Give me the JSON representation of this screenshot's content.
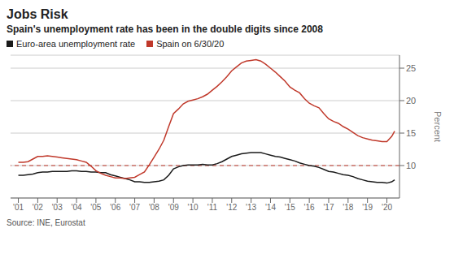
{
  "chart_data": {
    "type": "line",
    "title": "Jobs Risk",
    "subtitle": "Spain's unemployment rate has been in the double digits since 2008",
    "annotations": [
      "Source: INE, Eurostat"
    ],
    "y_label": "Percent",
    "x": [
      2001.0,
      2001.25,
      2001.5,
      2001.75,
      2002.0,
      2002.25,
      2002.5,
      2002.75,
      2003.0,
      2003.25,
      2003.5,
      2003.75,
      2004.0,
      2004.25,
      2004.5,
      2004.75,
      2005.0,
      2005.25,
      2005.5,
      2005.75,
      2006.0,
      2006.25,
      2006.5,
      2006.75,
      2007.0,
      2007.25,
      2007.5,
      2007.75,
      2008.0,
      2008.25,
      2008.5,
      2008.75,
      2009.0,
      2009.25,
      2009.5,
      2009.75,
      2010.0,
      2010.25,
      2010.5,
      2010.75,
      2011.0,
      2011.25,
      2011.5,
      2011.75,
      2012.0,
      2012.25,
      2012.5,
      2012.75,
      2013.0,
      2013.25,
      2013.5,
      2013.75,
      2014.0,
      2014.25,
      2014.5,
      2014.75,
      2015.0,
      2015.25,
      2015.5,
      2015.75,
      2016.0,
      2016.25,
      2016.5,
      2016.75,
      2017.0,
      2017.25,
      2017.5,
      2017.75,
      2018.0,
      2018.25,
      2018.5,
      2018.75,
      2019.0,
      2019.25,
      2019.5,
      2019.75,
      2020.0,
      2020.25,
      2020.4
    ],
    "series": [
      {
        "name": "Euro-area unemployment rate",
        "color": "#1a1a1a",
        "values": [
          8.5,
          8.5,
          8.6,
          8.7,
          8.9,
          9.0,
          9.0,
          9.1,
          9.1,
          9.1,
          9.1,
          9.2,
          9.2,
          9.1,
          9.1,
          9.0,
          9.0,
          8.9,
          8.9,
          8.6,
          8.4,
          8.2,
          8.0,
          7.8,
          7.5,
          7.5,
          7.4,
          7.4,
          7.5,
          7.6,
          7.8,
          8.5,
          9.5,
          9.8,
          10.0,
          10.1,
          10.1,
          10.1,
          10.2,
          10.1,
          10.1,
          10.3,
          10.6,
          11.0,
          11.4,
          11.6,
          11.8,
          11.9,
          12.0,
          12.0,
          12.0,
          11.8,
          11.6,
          11.4,
          11.3,
          11.1,
          10.9,
          10.7,
          10.4,
          10.2,
          10.0,
          9.9,
          9.7,
          9.4,
          9.1,
          9.0,
          8.8,
          8.6,
          8.5,
          8.3,
          8.0,
          7.8,
          7.6,
          7.5,
          7.4,
          7.4,
          7.3,
          7.5,
          7.8
        ]
      },
      {
        "name": "Spain on 6/30/20",
        "color": "#c0392b",
        "values": [
          10.5,
          10.5,
          10.6,
          11.0,
          11.4,
          11.4,
          11.5,
          11.4,
          11.3,
          11.2,
          11.1,
          11.0,
          10.9,
          10.7,
          10.5,
          9.9,
          9.2,
          8.8,
          8.5,
          8.3,
          8.1,
          8.1,
          8.0,
          8.1,
          8.2,
          8.6,
          9.0,
          10.1,
          11.3,
          12.5,
          13.9,
          16.0,
          18.0,
          18.7,
          19.5,
          19.9,
          20.1,
          20.3,
          20.6,
          21.0,
          21.6,
          22.2,
          22.9,
          23.7,
          24.6,
          25.2,
          25.8,
          26.1,
          26.2,
          26.3,
          26.1,
          25.6,
          25.0,
          24.4,
          23.7,
          23.0,
          22.1,
          21.6,
          21.2,
          20.3,
          19.6,
          19.2,
          18.9,
          18.0,
          17.2,
          16.8,
          16.5,
          16.0,
          15.6,
          15.1,
          14.6,
          14.3,
          14.1,
          13.9,
          13.8,
          13.7,
          13.7,
          14.5,
          15.3
        ]
      }
    ],
    "hlines": [
      {
        "value": 10,
        "color": "#c0392b",
        "line_style": "dashed"
      }
    ],
    "xlim": [
      2000.6,
      2020.65
    ],
    "xticks": [
      {
        "value": 2001,
        "label": "'01"
      },
      {
        "value": 2002,
        "label": "'02"
      },
      {
        "value": 2003,
        "label": "'03"
      },
      {
        "value": 2004,
        "label": "'04"
      },
      {
        "value": 2005,
        "label": "'05"
      },
      {
        "value": 2006,
        "label": "'06"
      },
      {
        "value": 2007,
        "label": "'07"
      },
      {
        "value": 2008,
        "label": "'08"
      },
      {
        "value": 2009,
        "label": "'09"
      },
      {
        "value": 2010,
        "label": "'10"
      },
      {
        "value": 2011,
        "label": "'11"
      },
      {
        "value": 2012,
        "label": "'12"
      },
      {
        "value": 2013,
        "label": "'13"
      },
      {
        "value": 2014,
        "label": "'14"
      },
      {
        "value": 2015,
        "label": "'15"
      },
      {
        "value": 2016,
        "label": "'16"
      },
      {
        "value": 2017,
        "label": "'17"
      },
      {
        "value": 2018,
        "label": "'18"
      },
      {
        "value": 2019,
        "label": "'19"
      },
      {
        "value": 2020,
        "label": "'20"
      }
    ],
    "ylim": [
      5,
      27
    ],
    "yticks": [
      10,
      15,
      20,
      25
    ],
    "grid": "y",
    "legend": "top"
  }
}
